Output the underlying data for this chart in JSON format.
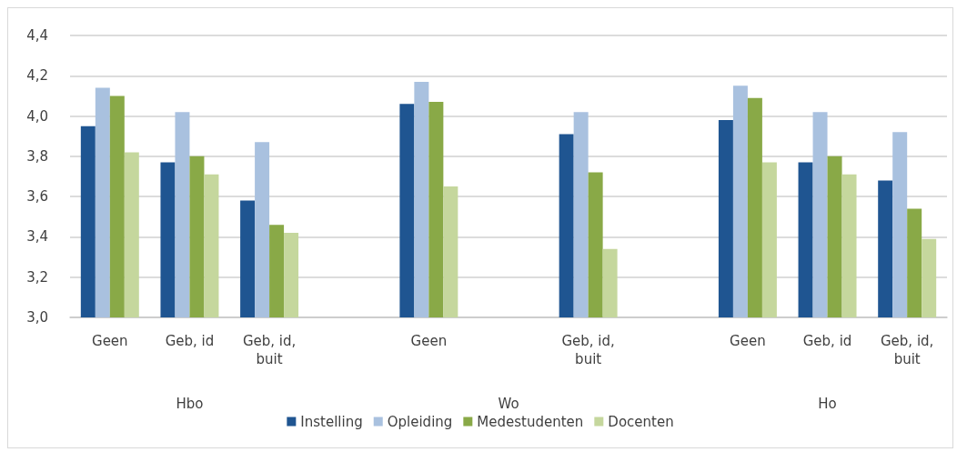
{
  "chart_data": {
    "type": "bar",
    "categories": [
      "Geen",
      "Geb, id",
      "Geb, id,\nbuit",
      null,
      "Geen",
      null,
      "Geb, id,\nbuit",
      null,
      "Geen",
      "Geb, id",
      "Geb, id,\nbuit"
    ],
    "annotations": [
      "Hbo",
      "Wo",
      "Ho"
    ],
    "series": [
      {
        "name": "Instelling",
        "color": "#1f5591",
        "values": [
          3.95,
          3.77,
          3.58,
          null,
          4.06,
          null,
          3.91,
          null,
          3.98,
          3.77,
          3.68
        ]
      },
      {
        "name": "Opleiding",
        "color": "#a9c1df",
        "values": [
          4.14,
          4.02,
          3.87,
          null,
          4.17,
          null,
          4.02,
          null,
          4.15,
          4.02,
          3.92
        ]
      },
      {
        "name": "Medestudenten",
        "color": "#89a947",
        "values": [
          4.1,
          3.8,
          3.46,
          null,
          4.07,
          null,
          3.72,
          null,
          4.09,
          3.8,
          3.54
        ]
      },
      {
        "name": "Docenten",
        "color": "#c5d79d",
        "values": [
          3.82,
          3.71,
          3.42,
          null,
          3.65,
          null,
          3.34,
          null,
          3.77,
          3.71,
          3.39
        ]
      }
    ],
    "ylim": [
      3.0,
      4.4
    ],
    "yticks": [
      {
        "value": 3.0,
        "label": "3,0"
      },
      {
        "value": 3.2,
        "label": "3,2"
      },
      {
        "value": 3.4,
        "label": "3,4"
      },
      {
        "value": 3.6,
        "label": "3,6"
      },
      {
        "value": 3.8,
        "label": "3,8"
      },
      {
        "value": 4.0,
        "label": "4,0"
      },
      {
        "value": 4.2,
        "label": "4,2"
      },
      {
        "value": 4.4,
        "label": "4,4"
      }
    ],
    "grid": "y",
    "legend": "bottom"
  }
}
